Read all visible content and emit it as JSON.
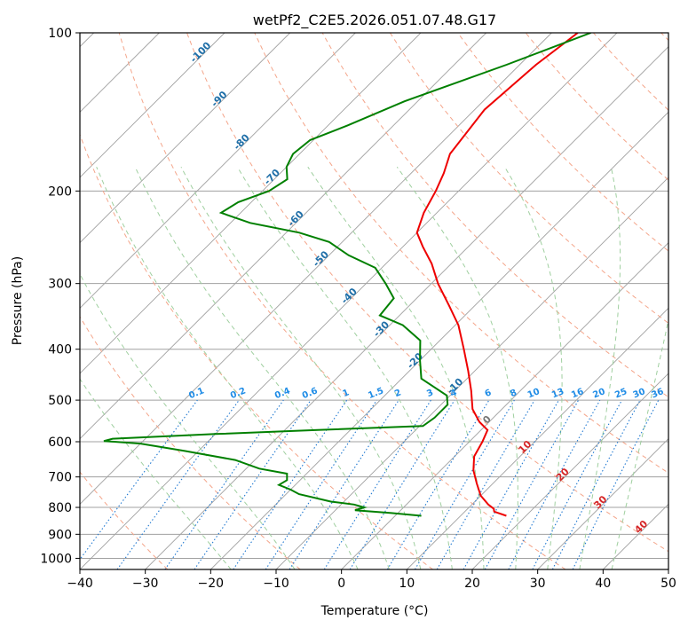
{
  "chart_data": {
    "type": "line",
    "title": "wetPf2_C2E5.2026.051.07.48.G17",
    "xlabel": "Temperature (°C)",
    "ylabel": "Pressure (hPa)",
    "xlim": [
      -40,
      50
    ],
    "ylim": [
      1050,
      100
    ],
    "y_scale": "log",
    "grid": true,
    "x_ticks": [
      "−40",
      "−30",
      "−20",
      "−10",
      "0",
      "10",
      "20",
      "30",
      "40",
      "50"
    ],
    "x_tick_values": [
      -40,
      -30,
      -20,
      -10,
      0,
      10,
      20,
      30,
      40,
      50
    ],
    "y_ticks": [
      "100",
      "200",
      "300",
      "400",
      "500",
      "600",
      "700",
      "800",
      "900",
      "1000"
    ],
    "y_tick_values": [
      100,
      200,
      300,
      400,
      500,
      600,
      700,
      800,
      900,
      1000
    ],
    "skew_deg": 45,
    "series": [
      {
        "role": "temperature",
        "color": "#ee0000",
        "points": [
          [
            100,
            -46
          ],
          [
            115,
            -47.5
          ],
          [
            140,
            -48.5
          ],
          [
            170,
            -47
          ],
          [
            185,
            -45
          ],
          [
            200,
            -43.5
          ],
          [
            220,
            -42
          ],
          [
            240,
            -40
          ],
          [
            255,
            -37
          ],
          [
            275,
            -33
          ],
          [
            300,
            -29
          ],
          [
            330,
            -24
          ],
          [
            360,
            -19.5
          ],
          [
            400,
            -15
          ],
          [
            440,
            -11
          ],
          [
            480,
            -7.5
          ],
          [
            520,
            -4.5
          ],
          [
            550,
            -1.5
          ],
          [
            570,
            1
          ],
          [
            600,
            2
          ],
          [
            640,
            3
          ],
          [
            680,
            5
          ],
          [
            720,
            7.5
          ],
          [
            760,
            10
          ],
          [
            790,
            12.5
          ],
          [
            805,
            14
          ],
          [
            815,
            14.5
          ],
          [
            830,
            17
          ]
        ]
      },
      {
        "role": "dewpoint",
        "color": "#008000",
        "points": [
          [
            100,
            -44
          ],
          [
            115,
            -52
          ],
          [
            135,
            -62
          ],
          [
            150,
            -67
          ],
          [
            160,
            -70.5
          ],
          [
            170,
            -71
          ],
          [
            180,
            -70
          ],
          [
            190,
            -68
          ],
          [
            200,
            -69
          ],
          [
            210,
            -72
          ],
          [
            220,
            -73
          ],
          [
            230,
            -67
          ],
          [
            240,
            -58
          ],
          [
            250,
            -52
          ],
          [
            265,
            -47
          ],
          [
            280,
            -41
          ],
          [
            300,
            -37
          ],
          [
            320,
            -33.5
          ],
          [
            345,
            -33
          ],
          [
            360,
            -28
          ],
          [
            385,
            -23
          ],
          [
            420,
            -20
          ],
          [
            455,
            -17
          ],
          [
            490,
            -10.5
          ],
          [
            510,
            -9
          ],
          [
            540,
            -9
          ],
          [
            560,
            -9.5
          ],
          [
            570,
            -25
          ],
          [
            580,
            -40
          ],
          [
            592,
            -55
          ],
          [
            598,
            -56
          ],
          [
            605,
            -50
          ],
          [
            625,
            -42
          ],
          [
            650,
            -33
          ],
          [
            675,
            -28
          ],
          [
            690,
            -23
          ],
          [
            710,
            -22
          ],
          [
            725,
            -22.5
          ],
          [
            740,
            -20
          ],
          [
            755,
            -18
          ],
          [
            780,
            -12
          ],
          [
            790,
            -8
          ],
          [
            800,
            -6
          ],
          [
            810,
            -7
          ],
          [
            820,
            -1
          ],
          [
            830,
            4
          ]
        ]
      }
    ],
    "dry_adiabats_theta_C": [
      -30,
      -10,
      10,
      30,
      50,
      70,
      90,
      110,
      130,
      150,
      170,
      190,
      210
    ],
    "moist_adiabats_C": [
      -20,
      -10,
      0,
      5,
      10,
      15,
      20,
      25,
      30,
      35,
      40
    ],
    "mixing_ratio_lines": [
      "0.1",
      "0.2",
      "0.4",
      "0.6",
      "1",
      "1.5",
      "2",
      "3",
      "4",
      "6",
      "8",
      "10",
      "13",
      "16",
      "20",
      "25",
      "30",
      "36"
    ],
    "mixing_ratio_values": [
      0.1,
      0.2,
      0.4,
      0.6,
      1,
      1.5,
      2,
      3,
      4,
      6,
      8,
      10,
      13,
      16,
      20,
      25,
      30,
      36
    ],
    "temperature_annotations_blue": [
      "-100",
      "-90",
      "-80",
      "-70",
      "-60",
      "-50",
      "-40",
      "-30",
      "-20",
      "-10"
    ],
    "temperature_annotations_red": [
      "0",
      "10",
      "20",
      "30",
      "40"
    ],
    "colors": {
      "dry_adiabat": "#f4a58a",
      "moist_adiabat": "#9fcf9f",
      "mixing_ratio": "#1f78d1",
      "blue_label": "#1f6fa8",
      "mix_label": "#1f8ce6",
      "red_label": "#d62728",
      "zero_label": "#777777",
      "isotherm": "#a0a0a0",
      "isobar": "#a0a0a0"
    }
  }
}
